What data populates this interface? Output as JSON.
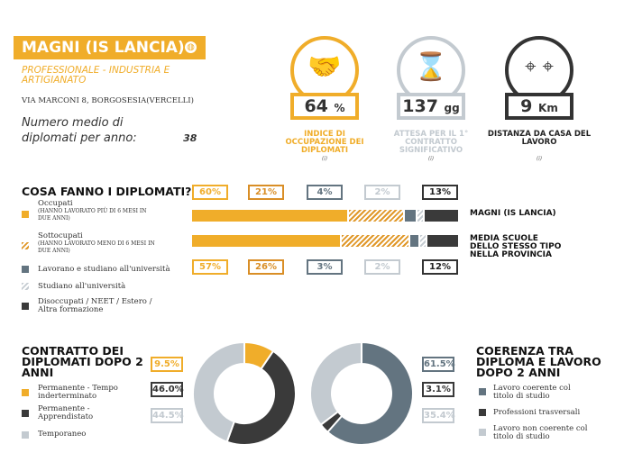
{
  "school": {
    "name": "MAGNI (IS LANCIA)",
    "type": "PROFESSIONALE - INDUSTRIA E ARTIGIANATO",
    "address": "VIA MARCONI 8, BORGOSESIA(VERCELLI)",
    "avg_label": "Numero medio di diplomati per anno:",
    "avg_value": "38"
  },
  "indicators": [
    {
      "value": "64",
      "unit": "%",
      "label": "INDICE DI OCCUPAZIONE DEI DIPLOMATI",
      "info": "(i)",
      "color": "#f0ad2a",
      "icon": "handshake-icon"
    },
    {
      "value": "137",
      "unit": "gg",
      "label": "ATTESA PER IL 1° CONTRATTO SIGNIFICATIVO",
      "info": "(i)",
      "color": "#c3cad0",
      "icon": "hourglass-icon"
    },
    {
      "value": "9",
      "unit": "Km",
      "label": "DISTANZA DA CASA DEL LAVORO",
      "info": "(i)",
      "color": "#333333",
      "icon": "map-route-icon"
    }
  ],
  "cosa": {
    "title": "COSA FANNO I DIPLOMATI?",
    "legend": [
      {
        "label": "Occupati",
        "note": "(HANNO LAVORATO PIÙ DI 6 MESI IN DUE ANNI)"
      },
      {
        "label": "Sottocupati",
        "note": "(HANNO LAVORATO MENO DI 6 MESI IN DUE ANNI)"
      },
      {
        "label": "Lavorano e studiano all'università"
      },
      {
        "label": "Studiano all'università"
      },
      {
        "label": "Disoccupati / NEET / Estero / Altra formazione"
      }
    ],
    "school_label": "MAGNI (IS LANCIA)",
    "avg_label": "MEDIA SCUOLE DELLO STESSO TIPO NELLA PROVINCIA",
    "school_pct": [
      "60%",
      "21%",
      "4%",
      "2%",
      "13%"
    ],
    "avg_pct": [
      "57%",
      "26%",
      "3%",
      "2%",
      "12%"
    ],
    "school_values": [
      60,
      21,
      4,
      2,
      13
    ],
    "avg_values": [
      57,
      26,
      3,
      2,
      12
    ]
  },
  "contratto": {
    "title": "CONTRATTO DEI DIPLOMATI DOPO 2 ANNI",
    "legend": [
      "Permanente - Tempo inderterminato",
      "Permanente - Apprendistato",
      "Temporaneo"
    ],
    "pct": [
      "9.5%",
      "46.0%",
      "44.5%"
    ],
    "values": [
      9.5,
      46.0,
      44.5
    ],
    "colors": [
      "#f0ad2a",
      "#3a3a3a",
      "#c3cad0"
    ]
  },
  "coerenza": {
    "title": "COERENZA TRA DIPLOMA E LAVORO DOPO 2 ANNI",
    "legend": [
      "Lavoro coerente col titolo di studio",
      "Professioni trasversali",
      "Lavoro non coerente col titolo di studio"
    ],
    "pct": [
      "61.5%",
      "3.1%",
      "35.4%"
    ],
    "values": [
      61.5,
      3.1,
      35.4
    ],
    "colors": [
      "#637480",
      "#3a3a3a",
      "#c3cad0"
    ]
  }
}
